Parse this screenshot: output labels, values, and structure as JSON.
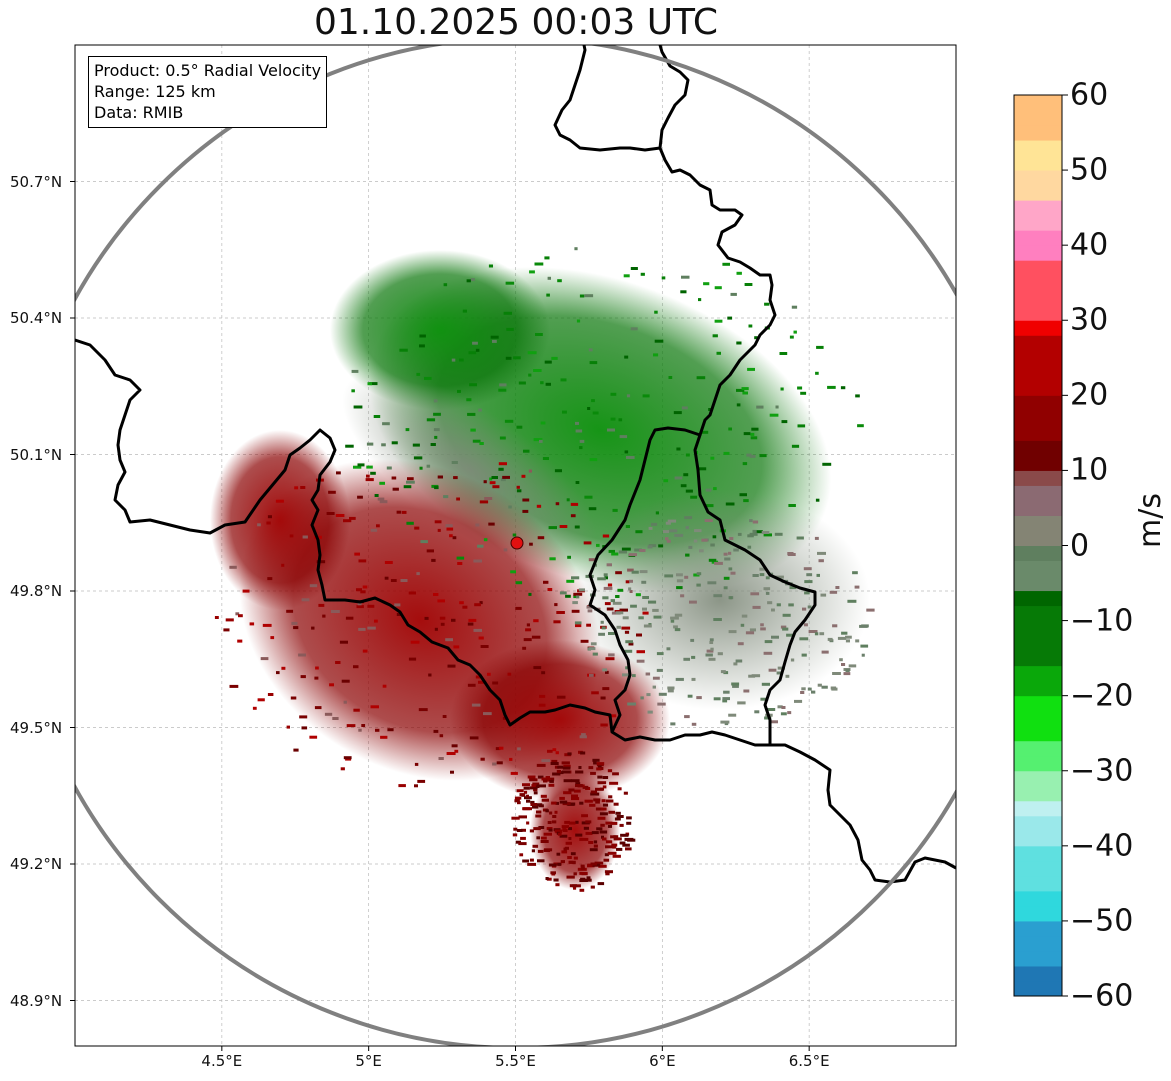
{
  "title": "01.10.2025 00:03 UTC",
  "info": {
    "product": "Product: 0.5° Radial Velocity",
    "range": "Range: 125 km",
    "source": "Data: RMIB"
  },
  "map_data": {
    "lat_range": [
      48.8,
      51.0
    ],
    "lon_range": [
      4.0,
      7.0
    ],
    "radar_site": {
      "lat": 49.914,
      "lon": 5.506
    },
    "range_km": 125,
    "lat_ticks": [
      {
        "value": 50.7,
        "label": "50.7°N"
      },
      {
        "value": 50.4,
        "label": "50.4°N"
      },
      {
        "value": 50.1,
        "label": "50.1°N"
      },
      {
        "value": 49.8,
        "label": "49.8°N"
      },
      {
        "value": 49.5,
        "label": "49.5°N"
      },
      {
        "value": 49.2,
        "label": "49.2°N"
      },
      {
        "value": 48.9,
        "label": "48.9°N"
      }
    ],
    "lon_ticks": [
      {
        "value": 4.5,
        "label": "4.5°E"
      },
      {
        "value": 5.0,
        "label": "5°E"
      },
      {
        "value": 5.5,
        "label": "5.5°E"
      },
      {
        "value": 6.0,
        "label": "6°E"
      },
      {
        "value": 6.5,
        "label": "6.5°E"
      }
    ]
  },
  "colorbar": {
    "unit": "m/s",
    "min": -60,
    "max": 60,
    "ticks": [
      {
        "value": 60,
        "label": "60"
      },
      {
        "value": 50,
        "label": "50"
      },
      {
        "value": 40,
        "label": "40"
      },
      {
        "value": 30,
        "label": "30"
      },
      {
        "value": 20,
        "label": "20"
      },
      {
        "value": 10,
        "label": "10"
      },
      {
        "value": 0,
        "label": "0"
      },
      {
        "value": -10,
        "label": "−10"
      },
      {
        "value": -20,
        "label": "−20"
      },
      {
        "value": -30,
        "label": "−30"
      },
      {
        "value": -40,
        "label": "−40"
      },
      {
        "value": -50,
        "label": "−50"
      },
      {
        "value": -60,
        "label": "−60"
      }
    ]
  }
}
